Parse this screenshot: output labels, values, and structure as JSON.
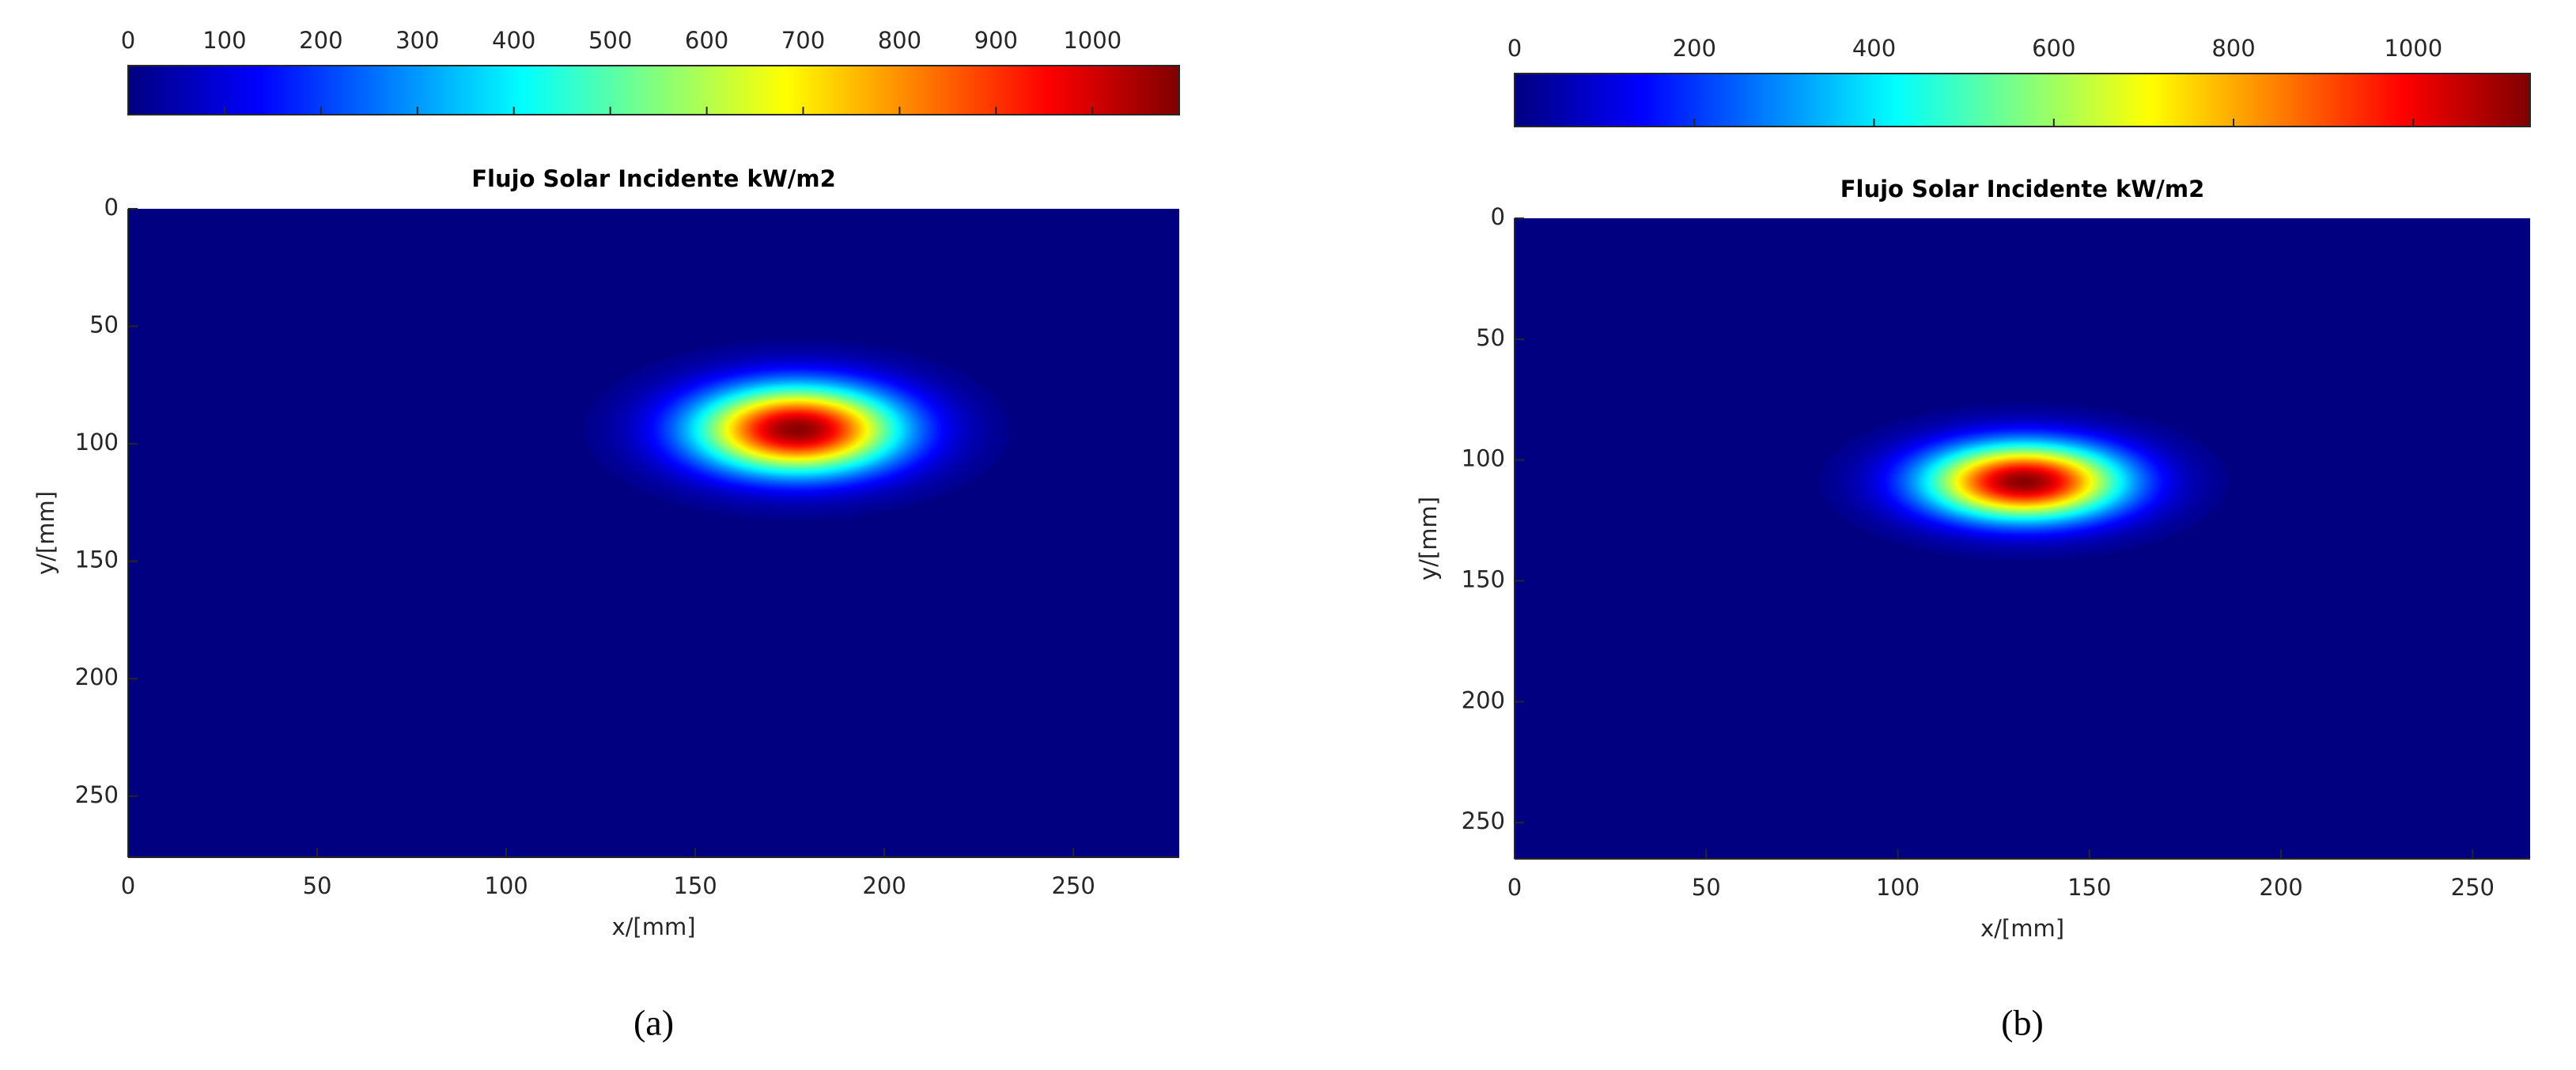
{
  "chart_data": [
    {
      "type": "heatmap",
      "title": "Flujo Solar Incidente kW/m2",
      "xlabel": "x/[mm]",
      "ylabel": "y/[mm]",
      "panel_label": "(a)",
      "xlim": [
        0,
        278
      ],
      "xticks": [
        0,
        50,
        100,
        150,
        200,
        250
      ],
      "ylim": [
        0,
        276
      ],
      "yticks": [
        0,
        50,
        100,
        150,
        200,
        250
      ],
      "y_reversed": true,
      "colormap": "jet",
      "clim": [
        0,
        1090
      ],
      "cticks": [
        0,
        100,
        200,
        300,
        400,
        500,
        600,
        700,
        800,
        900,
        1000
      ],
      "peak": {
        "x": 177,
        "y": 94,
        "value": 1080,
        "sigma_x": 19,
        "sigma_y": 13
      }
    },
    {
      "type": "heatmap",
      "title": "Flujo Solar Incidente kW/m2",
      "xlabel": "x/[mm]",
      "ylabel": "y/[mm]",
      "panel_label": "(b)",
      "xlim": [
        0,
        265
      ],
      "xticks": [
        0,
        50,
        100,
        150,
        200,
        250
      ],
      "ylim": [
        0,
        265
      ],
      "yticks": [
        0,
        50,
        100,
        150,
        200,
        250
      ],
      "y_reversed": true,
      "colormap": "jet",
      "clim": [
        0,
        1130
      ],
      "cticks": [
        0,
        200,
        400,
        600,
        800,
        1000
      ],
      "peak": {
        "x": 133,
        "y": 109,
        "value": 1120,
        "sigma_x": 18,
        "sigma_y": 11
      }
    }
  ]
}
